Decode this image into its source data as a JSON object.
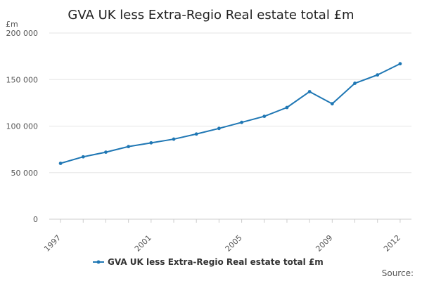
{
  "chart_data": {
    "type": "line",
    "title": "GVA UK less Extra-Regio Real estate total £m",
    "ylabel": "£m",
    "xlabel": "",
    "ylim": [
      0,
      200000
    ],
    "y_ticks": [
      0,
      50000,
      100000,
      150000,
      200000
    ],
    "y_tick_labels": [
      "0",
      "50 000",
      "100 000",
      "150 000",
      "200 000"
    ],
    "x_tick_labels": [
      "1997",
      "2001",
      "2005",
      "2009",
      "2012"
    ],
    "grid": true,
    "legend_position": "bottom",
    "series": [
      {
        "name": "GVA UK less Extra-Regio Real estate total £m",
        "color": "#1f77b4",
        "x": [
          1997,
          1998,
          1999,
          2000,
          2001,
          2002,
          2003,
          2004,
          2005,
          2006,
          2007,
          2008,
          2009,
          2010,
          2011,
          2012
        ],
        "values": [
          60000,
          67000,
          72000,
          78000,
          82000,
          86000,
          91500,
          97500,
          104000,
          110500,
          120000,
          137000,
          124000,
          146000,
          155000,
          167000
        ]
      }
    ]
  },
  "source_label": "Source:"
}
